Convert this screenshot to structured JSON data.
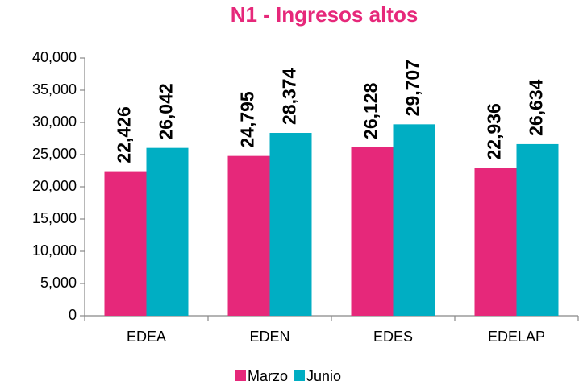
{
  "chart_data": {
    "type": "bar",
    "title": "N1 - Ingresos altos",
    "categories": [
      "EDEA",
      "EDEN",
      "EDES",
      "EDELAP"
    ],
    "series": [
      {
        "name": "Marzo",
        "color": "#e6287a",
        "values": [
          22426,
          24795,
          26128,
          22936
        ],
        "value_labels": [
          "22,426",
          "24,795",
          "26,128",
          "22,936"
        ]
      },
      {
        "name": "Junio",
        "color": "#00aec3",
        "values": [
          26042,
          28374,
          29707,
          26634
        ],
        "value_labels": [
          "26,042",
          "28,374",
          "29,707",
          "26,634"
        ]
      }
    ],
    "ylim": [
      0,
      40000
    ],
    "yticks": [
      0,
      {
        "value": 5000,
        "label": "5,000"
      },
      {
        "value": 10000,
        "label": "10,000"
      },
      {
        "value": 15000,
        "label": "15,000"
      },
      {
        "value": 20000,
        "label": "20,000"
      },
      {
        "value": 25000,
        "label": "25,000"
      },
      {
        "value": 30000,
        "label": "30,000"
      },
      {
        "value": 35000,
        "label": "35,000"
      },
      {
        "value": 40000,
        "label": "40,000"
      }
    ],
    "grid": false,
    "legend": "bottom"
  }
}
